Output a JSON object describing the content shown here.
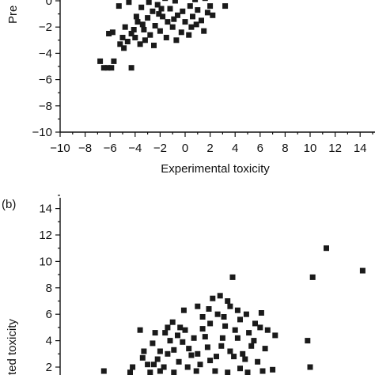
{
  "chart_data": [
    {
      "panel_label": "",
      "type": "scatter",
      "xlabel": "Experimental toxicity",
      "ylabel": "Pre",
      "xlim": [
        -10,
        15
      ],
      "ylim": [
        -10,
        1
      ],
      "x_ticks": [
        -10,
        -8,
        -6,
        -4,
        -2,
        0,
        2,
        4,
        6,
        8,
        10,
        12,
        14
      ],
      "x_tick_labels": [
        "−10",
        "−8",
        "−6",
        "−4",
        "−2",
        "0",
        "2",
        "4",
        "6",
        "8",
        "10",
        "12",
        "14"
      ],
      "y_ticks": [
        0,
        -2,
        -4,
        -6,
        -8,
        -10
      ],
      "y_tick_labels": [
        "0",
        "−2",
        "−4",
        "−6",
        "−8",
        "−10"
      ],
      "marker_color": "#1a1a1a",
      "points": [
        [
          -6.8,
          -4.6
        ],
        [
          -6.5,
          -5.1
        ],
        [
          -6.2,
          -5.1
        ],
        [
          -5.9,
          -5.1
        ],
        [
          -5.7,
          -4.6
        ],
        [
          -4.3,
          -5.1
        ],
        [
          -6.1,
          -2.5
        ],
        [
          -5.8,
          -2.4
        ],
        [
          -5.2,
          -3.3
        ],
        [
          -5.0,
          -2.8
        ],
        [
          -4.8,
          -2.0
        ],
        [
          -4.6,
          -3.1
        ],
        [
          -4.3,
          -2.5
        ],
        [
          -4.0,
          -2.8
        ],
        [
          -3.8,
          -1.6
        ],
        [
          -3.6,
          -3.3
        ],
        [
          -3.3,
          -2.2
        ],
        [
          -3.0,
          -1.3
        ],
        [
          -2.8,
          -2.6
        ],
        [
          -2.6,
          -0.8
        ],
        [
          -2.4,
          -1.9
        ],
        [
          -2.2,
          -0.3
        ],
        [
          -2.0,
          -2.3
        ],
        [
          -1.8,
          -1.2
        ],
        [
          -1.6,
          0.2
        ],
        [
          -1.4,
          -1.6
        ],
        [
          -1.2,
          -0.6
        ],
        [
          -1.0,
          -2.0
        ],
        [
          -0.8,
          0.0
        ],
        [
          -0.6,
          -1.1
        ],
        [
          -0.4,
          0.4
        ],
        [
          -0.2,
          -0.8
        ],
        [
          0.0,
          -1.6
        ],
        [
          0.2,
          0.3
        ],
        [
          0.4,
          -0.4
        ],
        [
          0.6,
          -1.2
        ],
        [
          0.8,
          0.1
        ],
        [
          1.0,
          -0.7
        ],
        [
          1.3,
          -1.5
        ],
        [
          1.6,
          0.2
        ],
        [
          2.0,
          -0.4
        ],
        [
          2.4,
          0.4
        ],
        [
          3.2,
          -0.4
        ],
        [
          -5.3,
          -0.4
        ],
        [
          -4.5,
          -0.1
        ],
        [
          -3.5,
          -0.5
        ],
        [
          -3.2,
          -3.0
        ],
        [
          -2.5,
          -3.4
        ],
        [
          -1.5,
          -2.8
        ],
        [
          -0.7,
          -3.0
        ],
        [
          -0.3,
          -2.4
        ],
        [
          0.5,
          -2.0
        ],
        [
          1.5,
          -2.3
        ],
        [
          -4.9,
          -3.6
        ],
        [
          -3.9,
          -1.2
        ],
        [
          -2.9,
          -0.1
        ],
        [
          -1.9,
          -0.6
        ],
        [
          -0.9,
          -1.4
        ],
        [
          0.9,
          -1.8
        ],
        [
          1.8,
          -0.9
        ],
        [
          -2.1,
          -1.0
        ],
        [
          -1.1,
          0.5
        ],
        [
          0.3,
          -2.6
        ],
        [
          -3.4,
          -1.8
        ],
        [
          -4.1,
          -2.2
        ],
        [
          2.2,
          -1.1
        ]
      ]
    },
    {
      "panel_label": "(b)",
      "type": "scatter",
      "xlabel": "",
      "ylabel": "ted toxicity",
      "xlim": [
        -10,
        15
      ],
      "ylim": [
        1,
        15
      ],
      "y_ticks": [
        2,
        4,
        6,
        8,
        10,
        12,
        14
      ],
      "y_tick_labels": [
        "2",
        "4",
        "6",
        "8",
        "10",
        "12",
        "14"
      ],
      "marker_color": "#1a1a1a",
      "points": [
        [
          11.3,
          11.0
        ],
        [
          14.2,
          9.3
        ],
        [
          10.2,
          8.8
        ],
        [
          9.8,
          4.0
        ],
        [
          10.0,
          2.0
        ],
        [
          7.2,
          4.4
        ],
        [
          3.8,
          8.8
        ],
        [
          3.6,
          6.6
        ],
        [
          -0.1,
          6.3
        ],
        [
          -1.6,
          4.6
        ],
        [
          -4.2,
          2.0
        ],
        [
          -3.6,
          4.8
        ],
        [
          2.2,
          7.2
        ],
        [
          1.0,
          6.6
        ],
        [
          -2.6,
          3.8
        ],
        [
          -1.0,
          5.4
        ],
        [
          0.3,
          3.4
        ],
        [
          1.6,
          4.3
        ],
        [
          2.6,
          6.0
        ],
        [
          3.2,
          5.1
        ],
        [
          4.2,
          6.3
        ],
        [
          4.9,
          6.0
        ],
        [
          5.6,
          5.3
        ],
        [
          6.1,
          6.1
        ],
        [
          5.3,
          3.6
        ],
        [
          4.6,
          3.0
        ],
        [
          3.9,
          2.8
        ],
        [
          2.9,
          3.6
        ],
        [
          2.0,
          2.5
        ],
        [
          1.2,
          2.2
        ],
        [
          0.5,
          2.9
        ],
        [
          -0.5,
          2.4
        ],
        [
          -1.4,
          3.0
        ],
        [
          -2.2,
          2.6
        ],
        [
          -3.0,
          2.2
        ],
        [
          -2.0,
          1.7
        ],
        [
          -0.9,
          1.6
        ],
        [
          0.9,
          1.7
        ],
        [
          2.4,
          1.7
        ],
        [
          3.4,
          1.6
        ],
        [
          4.4,
          1.9
        ],
        [
          5.8,
          2.4
        ],
        [
          6.4,
          3.4
        ],
        [
          6.6,
          4.8
        ],
        [
          5.1,
          4.6
        ],
        [
          4.0,
          4.8
        ],
        [
          3.0,
          4.2
        ],
        [
          2.0,
          5.3
        ],
        [
          1.4,
          4.9
        ],
        [
          0.7,
          4.2
        ],
        [
          -0.2,
          3.9
        ],
        [
          -0.9,
          3.3
        ],
        [
          -1.7,
          2.0
        ],
        [
          -2.8,
          1.6
        ],
        [
          -3.3,
          3.2
        ],
        [
          -4.4,
          1.6
        ],
        [
          -6.5,
          1.7
        ],
        [
          7.0,
          1.8
        ],
        [
          6.2,
          1.7
        ],
        [
          5.0,
          1.6
        ],
        [
          4.4,
          5.6
        ],
        [
          3.4,
          7.0
        ],
        [
          2.8,
          7.4
        ],
        [
          1.4,
          5.8
        ],
        [
          0.0,
          4.8
        ],
        [
          -0.4,
          5.0
        ],
        [
          -1.2,
          4.0
        ],
        [
          -2.0,
          3.2
        ],
        [
          -2.5,
          2.2
        ],
        [
          0.2,
          2.0
        ],
        [
          1.0,
          3.0
        ],
        [
          1.8,
          3.5
        ],
        [
          2.5,
          2.8
        ],
        [
          3.6,
          3.2
        ],
        [
          4.8,
          2.6
        ],
        [
          5.5,
          4.0
        ],
        [
          6.0,
          5.0
        ],
        [
          4.2,
          4.2
        ],
        [
          3.1,
          5.8
        ],
        [
          1.9,
          6.4
        ],
        [
          -0.6,
          4.4
        ],
        [
          -1.4,
          5.0
        ],
        [
          -2.4,
          4.6
        ],
        [
          -3.4,
          2.7
        ]
      ]
    }
  ]
}
